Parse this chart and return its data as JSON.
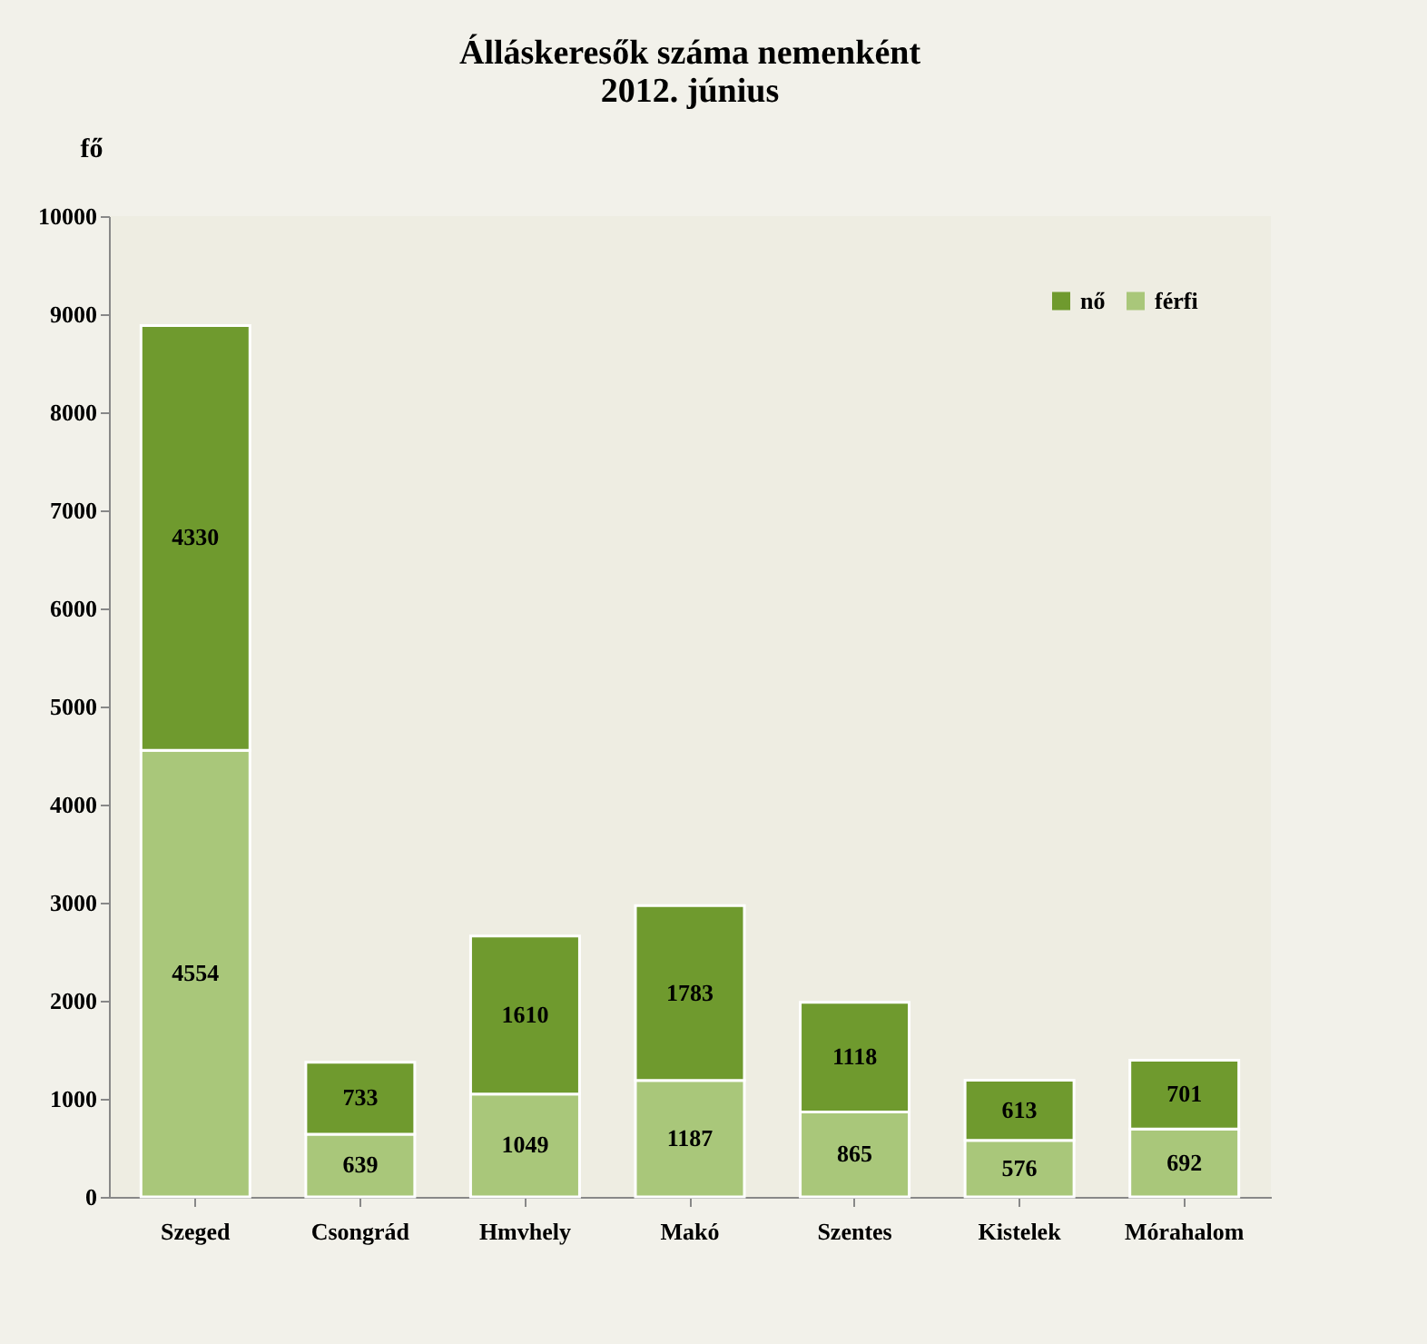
{
  "chart_data": {
    "type": "bar",
    "title": "Álláskeresők száma nemenként",
    "subtitle": "2012. június",
    "ylabel": "fő",
    "categories": [
      "Szeged",
      "Csongrád",
      "Hmvhely",
      "Makó",
      "Szentes",
      "Kistelek",
      "Mórahalom"
    ],
    "series": [
      {
        "name": "férfi",
        "color": "#a9c77a",
        "values": [
          4554,
          639,
          1049,
          1187,
          865,
          576,
          692
        ]
      },
      {
        "name": "nő",
        "color": "#6f9a2e",
        "values": [
          4330,
          733,
          1610,
          1783,
          1118,
          613,
          701
        ]
      }
    ],
    "stacked": true,
    "data_labels": true,
    "legend": "top right",
    "grid": false,
    "ylim": [
      0,
      10000
    ],
    "yticks": [
      0,
      1000,
      2000,
      3000,
      4000,
      5000,
      6000,
      7000,
      8000,
      9000,
      10000
    ]
  }
}
